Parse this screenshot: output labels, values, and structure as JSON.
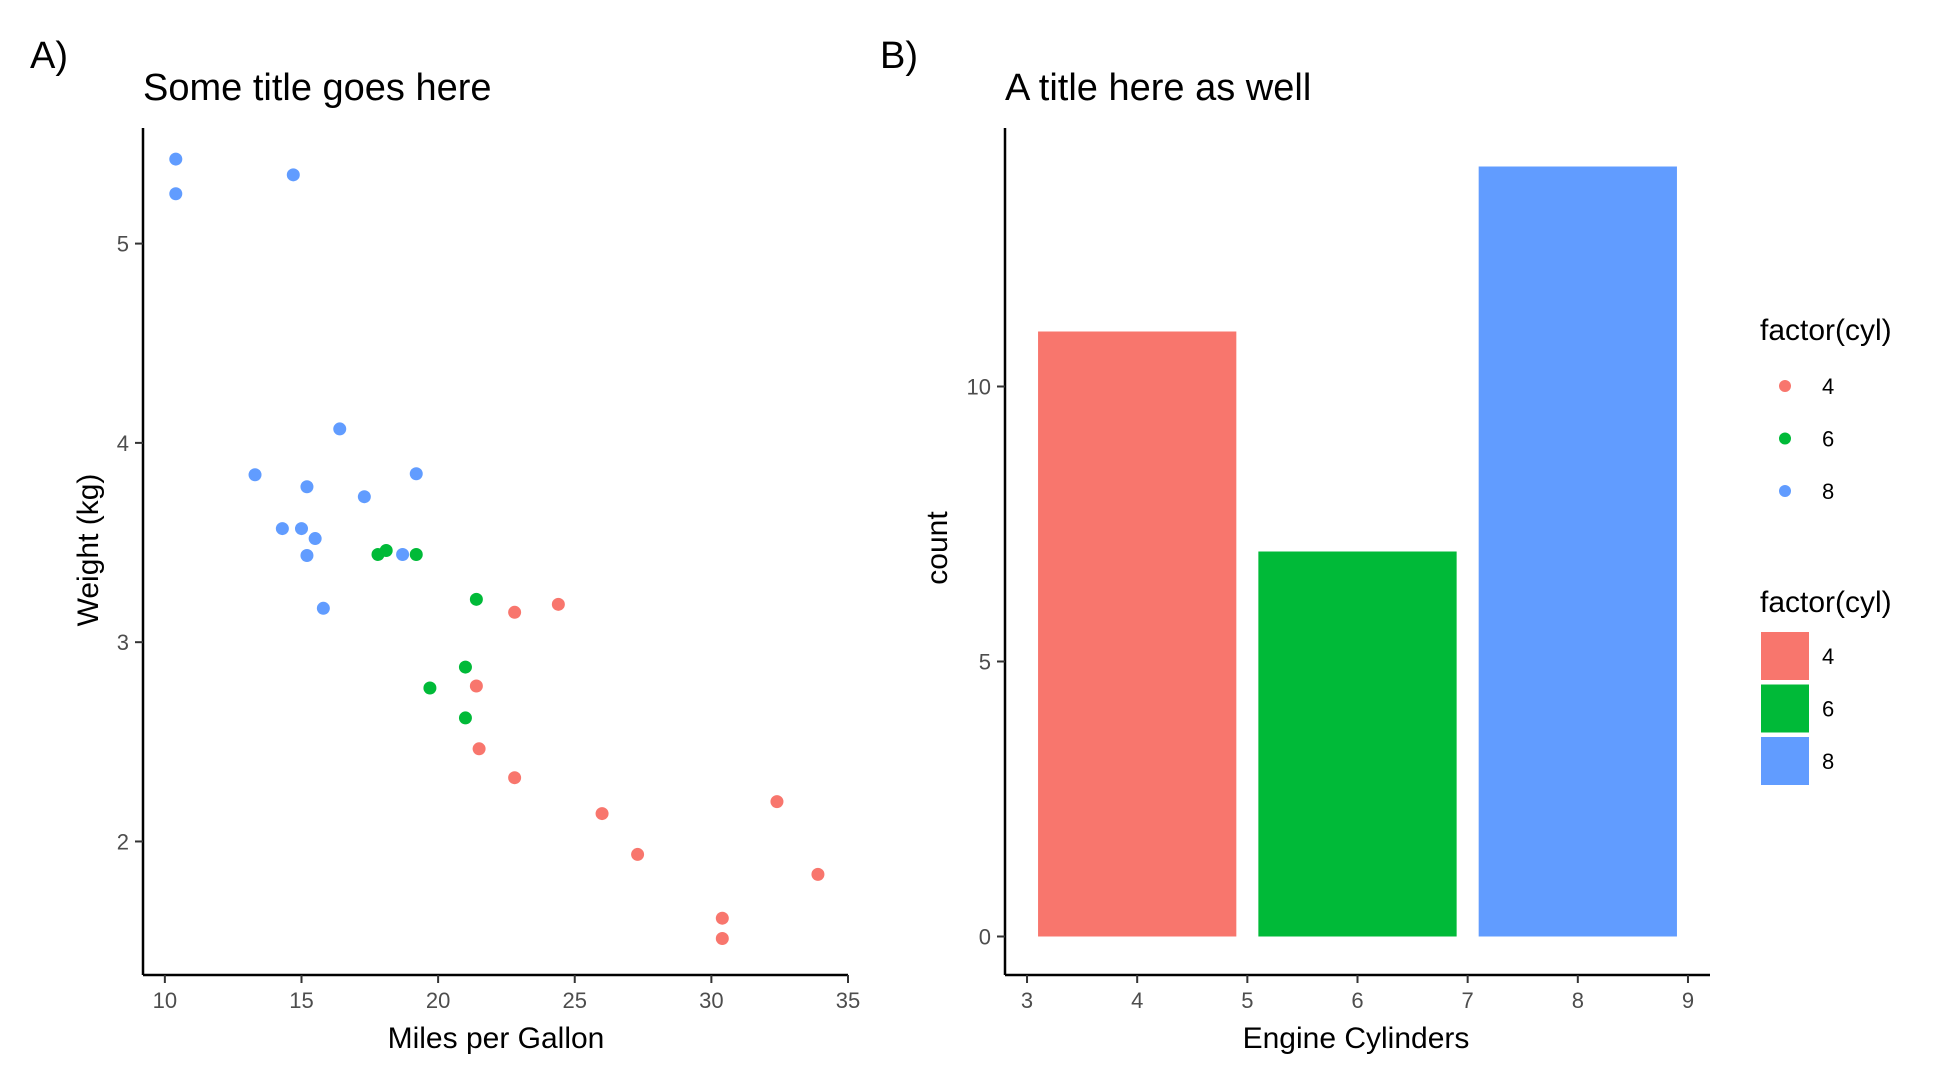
{
  "panel_tags": {
    "a": "A)",
    "b": "B)"
  },
  "chart_data": [
    {
      "type": "scatter",
      "title": "Some title goes here",
      "xlabel": "Miles per Gallon",
      "ylabel": "Weight (kg)",
      "xlim": [
        9.2,
        35.0
      ],
      "ylim": [
        1.33,
        5.58
      ],
      "xticks": [
        10,
        15,
        20,
        25,
        30,
        35
      ],
      "yticks": [
        2,
        3,
        4,
        5
      ],
      "grid": false,
      "series": [
        {
          "name": "4",
          "color": "#F8766D",
          "points": [
            [
              22.8,
              2.32
            ],
            [
              24.4,
              3.19
            ],
            [
              22.8,
              3.15
            ],
            [
              32.4,
              2.2
            ],
            [
              30.4,
              1.615
            ],
            [
              33.9,
              1.835
            ],
            [
              21.5,
              2.465
            ],
            [
              27.3,
              1.935
            ],
            [
              26.0,
              2.14
            ],
            [
              30.4,
              1.513
            ],
            [
              21.4,
              2.78
            ]
          ]
        },
        {
          "name": "6",
          "color": "#00BA38",
          "points": [
            [
              21.0,
              2.62
            ],
            [
              21.0,
              2.875
            ],
            [
              21.4,
              3.215
            ],
            [
              18.1,
              3.46
            ],
            [
              19.2,
              3.44
            ],
            [
              17.8,
              3.44
            ],
            [
              19.7,
              2.77
            ]
          ]
        },
        {
          "name": "8",
          "color": "#619CFF",
          "points": [
            [
              18.7,
              3.44
            ],
            [
              14.3,
              3.57
            ],
            [
              16.4,
              4.07
            ],
            [
              17.3,
              3.73
            ],
            [
              15.2,
              3.78
            ],
            [
              10.4,
              5.25
            ],
            [
              10.4,
              5.424
            ],
            [
              14.7,
              5.345
            ],
            [
              15.5,
              3.52
            ],
            [
              15.2,
              3.435
            ],
            [
              13.3,
              3.84
            ],
            [
              19.2,
              3.845
            ],
            [
              15.8,
              3.17
            ],
            [
              15.0,
              3.57
            ]
          ]
        }
      ]
    },
    {
      "type": "bar",
      "title": "A title here as well",
      "xlabel": "Engine Cylinders",
      "ylabel": "count",
      "xlim": [
        2.8,
        9.2
      ],
      "ylim": [
        -0.7,
        14.7
      ],
      "xticks": [
        3,
        4,
        5,
        6,
        7,
        8,
        9
      ],
      "yticks": [
        0,
        5,
        10
      ],
      "grid": false,
      "bar_width": 1.8,
      "bars": [
        {
          "x": 4,
          "value": 11,
          "color": "#F8766D"
        },
        {
          "x": 6,
          "value": 7,
          "color": "#00BA38"
        },
        {
          "x": 8,
          "value": 14,
          "color": "#619CFF"
        }
      ]
    }
  ],
  "legends": [
    {
      "title": "factor(cyl)",
      "kind": "point",
      "items": [
        {
          "label": "4",
          "color": "#F8766D"
        },
        {
          "label": "6",
          "color": "#00BA38"
        },
        {
          "label": "8",
          "color": "#619CFF"
        }
      ]
    },
    {
      "title": "factor(cyl)",
      "kind": "fill",
      "items": [
        {
          "label": "4",
          "color": "#F8766D"
        },
        {
          "label": "6",
          "color": "#00BA38"
        },
        {
          "label": "8",
          "color": "#619CFF"
        }
      ]
    }
  ]
}
